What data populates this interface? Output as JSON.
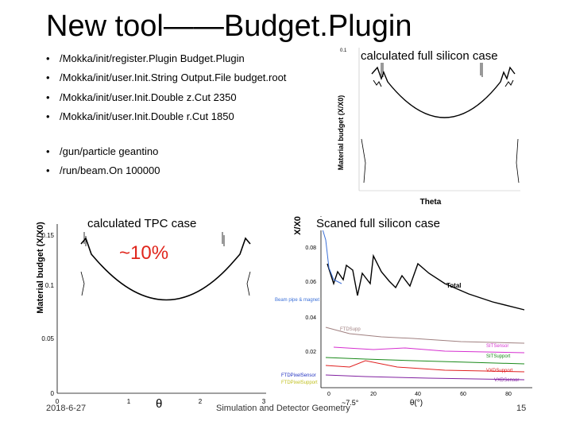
{
  "slide": {
    "title": "New tool——Budget.Plugin",
    "bullets": [
      "/Mokka/init/register.Plugin Budget.Plugin",
      "/Mokka/init/user.Init.String Output.File budget.root",
      "/Mokka/init/user.Init.Double z.Cut 2350",
      "/Mokka/init/user.Init.Double r.Cut 1850",
      "/gun/particle geantino",
      "/run/beam.On 100000"
    ],
    "captions": {
      "silicon": "calculated full silicon case",
      "tpc": "calculated TPC case",
      "scanned": "Scaned full silicon case"
    },
    "highlight": "~10%",
    "footer": {
      "date": "2018-6-27",
      "center": "Simulation and Detector Geometry",
      "page": "15"
    }
  },
  "plots": {
    "silicon": {
      "ylabel": "Material budget (X/X0)",
      "xlabel": "Theta",
      "ytop": "0.1"
    },
    "tpc": {
      "ylabel": "Material budget (X/X0)",
      "xlabel": "θ",
      "yticks": [
        "0.15",
        "0.1",
        "0.05",
        "0"
      ],
      "xticks": [
        "0",
        "1",
        "2",
        "3"
      ]
    },
    "scanned": {
      "ylabel": "X/X0",
      "xlabel": "θ(°)",
      "yticks": [
        "0.08",
        "0.06",
        "0.04",
        "0.02"
      ],
      "xticks": [
        "0",
        "20",
        "40",
        "60",
        "80"
      ],
      "angle_note": "~7.5°",
      "series": [
        {
          "name": "Total",
          "color": "#000000"
        },
        {
          "name": "Beam pipe & magnet",
          "color": "#3a6fd8"
        },
        {
          "name": "FTDSupp",
          "color": "#a08080"
        },
        {
          "name": "SITSensor",
          "color": "#d62fd0"
        },
        {
          "name": "SITSupport",
          "color": "#1a8a1a"
        },
        {
          "name": "VXDSupport",
          "color": "#e02020"
        },
        {
          "name": "FTDPixelSensor",
          "color": "#2030c0"
        },
        {
          "name": "FTDPixelSupport",
          "color": "#c0c020"
        },
        {
          "name": "VXDSensor",
          "color": "#8020a0"
        }
      ]
    }
  }
}
